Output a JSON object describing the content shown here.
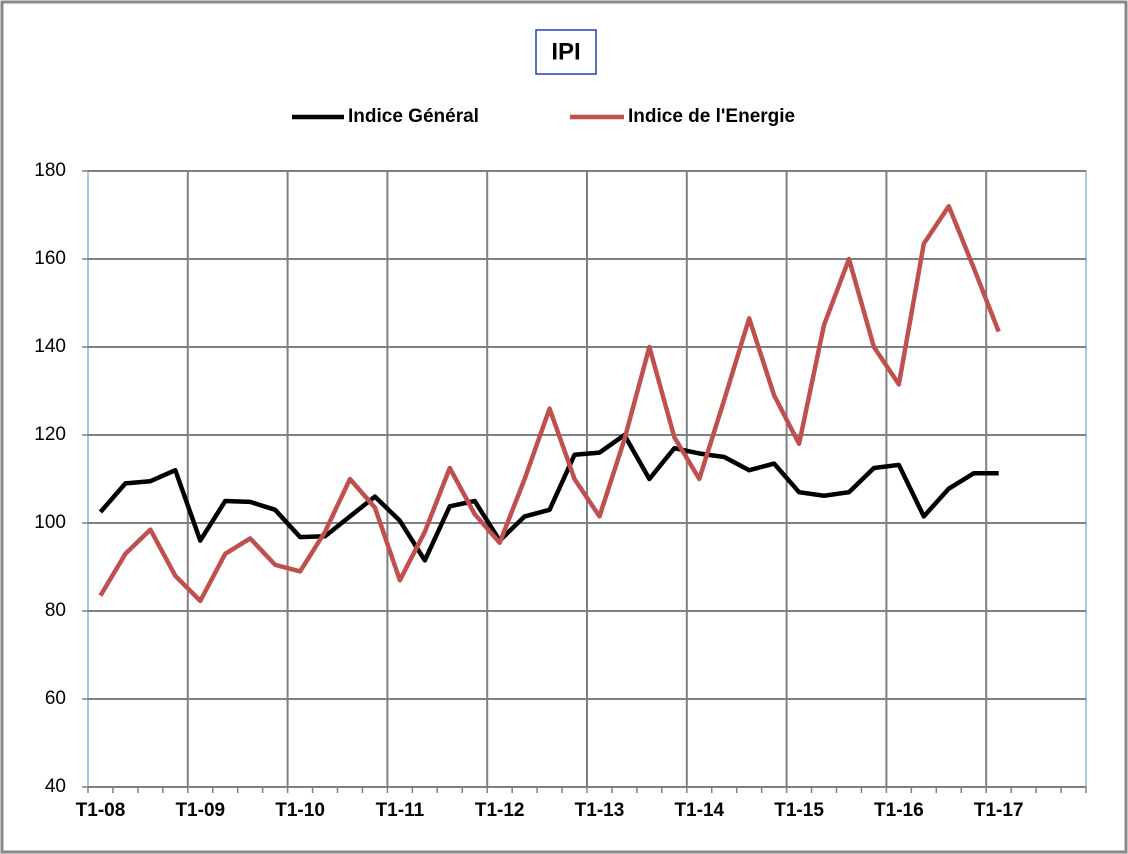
{
  "chart_data": {
    "type": "line",
    "title": "IPI",
    "categories": [
      "T1-08",
      null,
      null,
      null,
      "T1-09",
      null,
      null,
      null,
      "T1-10",
      null,
      null,
      null,
      "T1-11",
      null,
      null,
      null,
      "T1-12",
      null,
      null,
      null,
      "T1-13",
      null,
      null,
      null,
      "T1-14",
      null,
      null,
      null,
      "T1-15",
      null,
      null,
      null,
      "T1-16",
      null,
      null,
      null,
      "T1-17",
      null,
      null,
      null
    ],
    "series": [
      {
        "name": "Indice Général",
        "color": "#000000",
        "values": [
          102.5,
          109,
          109.5,
          112,
          96,
          105,
          104.8,
          103,
          96.8,
          97,
          101.5,
          106,
          100.5,
          91.5,
          103.8,
          105,
          96,
          101.5,
          103,
          115.5,
          116,
          120,
          110,
          117,
          115.8,
          115,
          112,
          113.5,
          107,
          106.2,
          107,
          112.5,
          113.2,
          101.5,
          107.8,
          111.3,
          111.3,
          null,
          null,
          null
        ]
      },
      {
        "name": "Indice de l'Energie",
        "color": "#c0504d",
        "values": [
          83.5,
          93,
          98.5,
          88,
          82.3,
          93,
          96.5,
          90.5,
          89,
          98,
          110,
          103.5,
          87,
          98,
          112.5,
          102,
          95.5,
          110,
          126,
          110,
          101.5,
          119,
          140,
          119.5,
          110,
          128,
          146.5,
          129,
          118,
          145,
          160,
          140,
          131.5,
          163.5,
          172,
          158,
          143.5,
          null,
          null,
          null
        ]
      }
    ],
    "ylim": [
      40,
      180
    ],
    "yticks": [
      40,
      60,
      80,
      100,
      120,
      140,
      160,
      180
    ],
    "grid": true,
    "legend": "top"
  }
}
